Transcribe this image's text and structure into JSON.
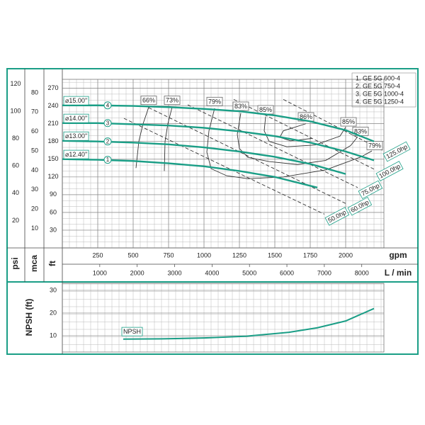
{
  "chart_data": [
    {
      "type": "line",
      "legend": [
        "1. GE 5G 600-4",
        "2. GE 5G 750-4",
        "3. GE 5G 1000-4",
        "4. GE 5G 1250-4"
      ],
      "x_label": "gpm",
      "x2_label": "L / min",
      "xlim": [
        0,
        2270
      ],
      "xticks": [
        250,
        500,
        750,
        1000,
        1250,
        1500,
        1750,
        2000
      ],
      "x2lim": [
        0,
        8592
      ],
      "x2ticks": [
        1000,
        2000,
        3000,
        4000,
        5000,
        6000,
        7000,
        8000
      ],
      "y_label": "ft",
      "ylim": [
        0,
        285
      ],
      "yticks": [
        30,
        60,
        90,
        120,
        150,
        180,
        210,
        240,
        270
      ],
      "y2_label": "mca",
      "y2lim": [
        0,
        86.9
      ],
      "y2ticks": [
        10,
        20,
        30,
        40,
        50,
        60,
        70,
        80
      ],
      "y3_label": "psi",
      "y3lim": [
        0,
        123.4
      ],
      "y3ticks": [
        20,
        40,
        60,
        80,
        100,
        120
      ],
      "grid": true,
      "series": [
        {
          "name": "⌀12.40\"",
          "marker": "1",
          "color": "#1a9e86",
          "x": [
            0,
            250,
            500,
            750,
            1000,
            1250,
            1500,
            1800
          ],
          "values": [
            150,
            149,
            147,
            143,
            138,
            130,
            120,
            102
          ]
        },
        {
          "name": "⌀13.00\"",
          "marker": "2",
          "color": "#1a9e86",
          "x": [
            0,
            250,
            500,
            750,
            1000,
            1250,
            1500,
            1750,
            2000
          ],
          "values": [
            181,
            180,
            178,
            175,
            170,
            163,
            154,
            142,
            125
          ]
        },
        {
          "name": "⌀14.00\"",
          "marker": "3",
          "color": "#1a9e86",
          "x": [
            0,
            250,
            500,
            750,
            1000,
            1250,
            1500,
            1750,
            2000,
            2200
          ],
          "values": [
            211,
            211,
            209,
            207,
            203,
            197,
            189,
            178,
            163,
            148
          ]
        },
        {
          "name": "⌀15.00\"",
          "marker": "4",
          "color": "#1a9e86",
          "x": [
            0,
            250,
            500,
            750,
            1000,
            1250,
            1500,
            1750,
            2000,
            2200
          ],
          "values": [
            241,
            241,
            240,
            238,
            235,
            231,
            224,
            214,
            199,
            180
          ]
        }
      ],
      "power_lines": [
        {
          "name": "50.0hp",
          "color": "#333333",
          "linestyle": "dashed",
          "x": [
            435,
            1850
          ],
          "values": [
            219,
            57
          ]
        },
        {
          "name": "60.0hp",
          "color": "#333333",
          "linestyle": "dashed",
          "x": [
            610,
            2010
          ],
          "values": [
            237,
            74
          ]
        },
        {
          "name": "75.0hp",
          "color": "#333333",
          "linestyle": "dashed",
          "x": [
            885,
            2085
          ],
          "values": [
            242,
            102
          ]
        },
        {
          "name": "100.0hp",
          "color": "#333333",
          "linestyle": "dashed",
          "x": [
            1210,
            2210
          ],
          "values": [
            251,
            132
          ]
        },
        {
          "name": "125.0hp",
          "color": "#333333",
          "linestyle": "dashed",
          "x": [
            1560,
            2260
          ],
          "values": [
            251,
            165
          ]
        }
      ],
      "efficiency_lines": [
        {
          "name": "66%",
          "color": "#333333",
          "x": [
            610,
            570,
            540,
            520
          ],
          "values": [
            238,
            210,
            180,
            135
          ]
        },
        {
          "name": "73%",
          "color": "#333333",
          "x": [
            775,
            745,
            725,
            720
          ],
          "values": [
            238,
            210,
            180,
            130
          ]
        },
        {
          "name": "79%",
          "color": "#333333",
          "x": [
            1075,
            1035,
            1020,
            1050,
            1160,
            1310,
            1560,
            1860,
            2110,
            2185
          ],
          "values": [
            236,
            198,
            162,
            134,
            122,
            117,
            120,
            132,
            154,
            164
          ]
        },
        {
          "name": "83%",
          "color": "#333333",
          "x": [
            1260,
            1235,
            1250,
            1310,
            1460,
            1660,
            1860,
            2035,
            2085
          ],
          "values": [
            228,
            192,
            168,
            153,
            146,
            141,
            148,
            173,
            188
          ]
        },
        {
          "name": "85%",
          "color": "#333333",
          "x": [
            1435,
            1425,
            1460,
            1585,
            1785,
            1960,
            2000
          ],
          "values": [
            222,
            198,
            180,
            171,
            174,
            189,
            204
          ]
        },
        {
          "name": "86%",
          "color": "#333333",
          "x": [
            1720,
            1560,
            1535,
            1610,
            1760
          ],
          "values": [
            210,
            198,
            187,
            181,
            185
          ]
        }
      ]
    },
    {
      "type": "line",
      "y_label": "NPSH (ft)",
      "ylim": [
        2.8,
        33.1
      ],
      "yticks": [
        10,
        20,
        30
      ],
      "grid": true,
      "series": [
        {
          "name": "NPSH",
          "color": "#1a9e86",
          "x": [
            430,
            700,
            1000,
            1300,
            1600,
            1800,
            2000,
            2200
          ],
          "values": [
            8.5,
            8.6,
            9,
            9.8,
            11.5,
            13.5,
            16.5,
            22
          ]
        }
      ]
    }
  ]
}
